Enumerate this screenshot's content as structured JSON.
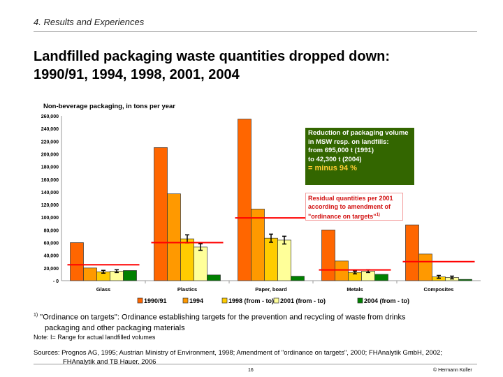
{
  "header": {
    "section": "4. Results and Experiences",
    "title_line1": "Landfilled packaging waste quantities dropped down:",
    "title_line2": "1990/91, 1994, 1998, 2001, 2004"
  },
  "chart_data": {
    "type": "bar",
    "title": "Non-beverage packaging, in tons per year",
    "categories": [
      "Glass",
      "Plastics",
      "Paper, board",
      "Metals",
      "Composites"
    ],
    "ylim": [
      0,
      260000
    ],
    "yticks": [
      "-  0",
      "20,000",
      "40,000",
      "60,000",
      "80,000",
      "100,000",
      "120,000",
      "140,000",
      "160,000",
      "180,000",
      "200,000",
      "220,000",
      "240,000",
      "260,000"
    ],
    "series": [
      {
        "name": "1990/91",
        "color": "#ff6600",
        "values": [
          60000,
          210000,
          255000,
          80000,
          88000
        ]
      },
      {
        "name": "1994",
        "color": "#ff9900",
        "values": [
          20000,
          137000,
          113000,
          31000,
          42000
        ]
      },
      {
        "name": "1998 (from - to)",
        "color": "#ffcc00",
        "values": [
          14000,
          66000,
          67000,
          13000,
          6000
        ],
        "range": true
      },
      {
        "name": "2001 (from - to)",
        "color": "#ffff99",
        "values": [
          15000,
          53000,
          64000,
          15000,
          5000
        ],
        "range": true
      },
      {
        "name": "2004 (from - to)",
        "color": "#008000",
        "values": [
          16000,
          9000,
          7000,
          10000,
          2000
        ]
      }
    ],
    "targets_2001": [
      25000,
      60000,
      99000,
      17000,
      30000
    ],
    "target_color": "#ff0000",
    "legend": "bottom",
    "grid": false
  },
  "annotations": {
    "green_box": [
      "Reduction of packaging volume",
      "in MSW resp. on landfills:",
      "from 695,000 t (1991)",
      "to 42,300 t (2004)"
    ],
    "green_box_highlight": "= minus 94 %",
    "red_box": [
      "Residual quantities per 2001",
      "according to amendment of",
      "\"ordinance on targets\""
    ],
    "red_box_sup": "1)"
  },
  "footer": {
    "footnote_mark": "1)",
    "footnote_line1": "\"Ordinance on targets\": Ordinance establishing targets for the prevention and recycling of waste from drinks",
    "footnote_line2": "packaging and other packaging materials",
    "note": "Note: I= Range for actual landfilled volumes",
    "sources_line1": "Sources: Prognos AG, 1995; Austrian Ministry of Environment, 1998; Amendment of \"ordinance on targets\", 2000; FHAnalytik GmbH, 2002;",
    "sources_line2": "FHAnalytik and TB Hauer, 2006",
    "page": "16",
    "copyright": "© Hermann Koller"
  }
}
